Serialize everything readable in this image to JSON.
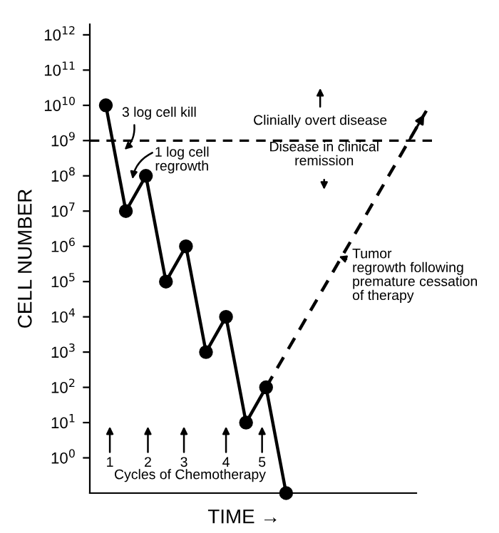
{
  "chart_data": {
    "type": "line",
    "xlabel": "TIME →",
    "ylabel": "CELL NUMBER",
    "log": "y",
    "ylim": [
      0.1,
      2000000000000
    ],
    "yticks": [
      {
        "value": 1,
        "label": "10$^{0}$"
      },
      {
        "value": 10,
        "label": "10$^{1}$"
      },
      {
        "value": 100,
        "label": "10$^{2}$"
      },
      {
        "value": 1000,
        "label": "10$^{3}$"
      },
      {
        "value": 10000,
        "label": "10$^{4}$"
      },
      {
        "value": 100000,
        "label": "10$^{5}$"
      },
      {
        "value": 1000000,
        "label": "10$^{6}$"
      },
      {
        "value": 10000000,
        "label": "10$^{7}$"
      },
      {
        "value": 100000000,
        "label": "10$^{8}$"
      },
      {
        "value": 1000000000,
        "label": "10$^{9}$"
      },
      {
        "value": 10000000000,
        "label": "10$^{10}$"
      },
      {
        "value": 100000000000,
        "label": "10$^{11}$"
      },
      {
        "value": 1000000000000,
        "label": "10$^{12}$"
      }
    ],
    "categories": [
      null,
      null,
      null,
      null,
      null,
      null,
      null,
      null,
      null,
      null,
      null,
      null,
      null,
      null,
      null,
      null,
      null
    ],
    "series": [
      {
        "color": "#000000",
        "marker": "circle",
        "line_style": "solid",
        "values": [
          10000000000,
          10000000,
          100000000,
          100000,
          1000000,
          1000,
          10000,
          10,
          100,
          0.1,
          null,
          null,
          null,
          null,
          null,
          null,
          null
        ]
      },
      {
        "color": "#000000",
        "marker": "none",
        "line_style": "dashed",
        "values": [
          null,
          null,
          null,
          null,
          null,
          null,
          null,
          null,
          100,
          null,
          null,
          null,
          null,
          null,
          null,
          null,
          7000000000
        ]
      }
    ],
    "ref_lines": [
      {
        "axis": "y",
        "value": 1000000000,
        "color": "#000000",
        "line_style": "dashed"
      }
    ],
    "grid": false,
    "tick_labels": "y",
    "annotations": [
      "3 log cell kill",
      "1 log cell\nregrowth",
      "Clinially overt disease",
      "Disease in clinical\nremission",
      "Tumor\nregrowth following\npremature cessation\nof therapy",
      "1",
      "2",
      "3",
      "4",
      "5",
      "Cycles of Chemotherapy"
    ]
  }
}
